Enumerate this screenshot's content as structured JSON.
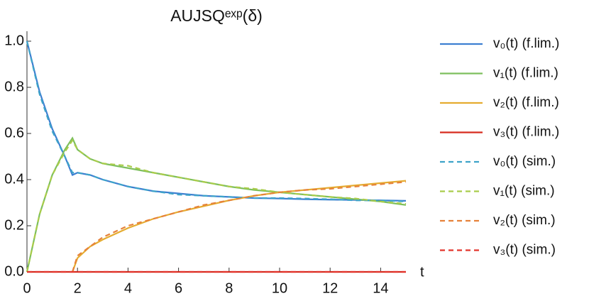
{
  "chart_data": {
    "type": "line",
    "title": "AUJSQᵉˣᵖ(δ)",
    "x_label": "t",
    "x": [
      0,
      0.5,
      1,
      1.5,
      1.8,
      2,
      2.5,
      3,
      4,
      5,
      6,
      7,
      8,
      9,
      10,
      11,
      12,
      13,
      14,
      15
    ],
    "xlim": [
      0,
      15
    ],
    "xticks": [
      0,
      2,
      4,
      6,
      8,
      10,
      12,
      14
    ],
    "ylim": [
      0,
      1
    ],
    "yticks": [
      {
        "value": 0,
        "label": "0.0"
      },
      0.2,
      0.4,
      0.6,
      0.8,
      {
        "value": 1,
        "label": "1.0"
      }
    ],
    "legend": "right",
    "series": [
      {
        "name": "v₀(t) (f.lim.)",
        "color": "#3d7fd1",
        "dash": false,
        "values": [
          1.0,
          0.78,
          0.62,
          0.5,
          0.42,
          0.43,
          0.42,
          0.4,
          0.37,
          0.35,
          0.34,
          0.33,
          0.325,
          0.32,
          0.318,
          0.315,
          0.313,
          0.312,
          0.31,
          0.308
        ]
      },
      {
        "name": "v₁(t) (f.lim.)",
        "color": "#7dbf5e",
        "dash": false,
        "values": [
          0,
          0.25,
          0.42,
          0.53,
          0.58,
          0.53,
          0.49,
          0.47,
          0.45,
          0.43,
          0.41,
          0.39,
          0.37,
          0.355,
          0.345,
          0.335,
          0.325,
          0.315,
          0.305,
          0.29
        ]
      },
      {
        "name": "v₂(t) (f.lim.)",
        "color": "#e5ac30",
        "dash": false,
        "values": [
          null,
          null,
          null,
          null,
          0,
          0.06,
          0.11,
          0.14,
          0.19,
          0.23,
          0.26,
          0.285,
          0.31,
          0.33,
          0.345,
          0.355,
          0.365,
          0.375,
          0.385,
          0.395
        ]
      },
      {
        "name": "v₃(t) (f.lim.)",
        "color": "#d62b1e",
        "dash": false,
        "values": [
          0,
          0,
          0,
          0,
          0,
          0,
          0,
          0,
          0,
          0,
          0,
          0,
          0,
          0,
          0,
          0,
          0,
          0,
          0,
          0
        ]
      },
      {
        "name": "v₀(t) (sim.)",
        "color": "#3ea3c9",
        "dash": true,
        "values": [
          1.0,
          0.77,
          0.61,
          0.5,
          0.43,
          0.43,
          0.42,
          0.4,
          0.37,
          0.35,
          0.335,
          0.33,
          0.325,
          0.32,
          0.32,
          0.318,
          0.315,
          0.31,
          0.31,
          0.305
        ]
      },
      {
        "name": "v₁(t) (sim.)",
        "color": "#a9cc4a",
        "dash": true,
        "values": [
          0,
          0.25,
          0.42,
          0.52,
          0.57,
          0.53,
          0.49,
          0.47,
          0.46,
          0.43,
          0.41,
          0.39,
          0.37,
          0.36,
          0.345,
          0.335,
          0.325,
          0.318,
          0.305,
          0.295
        ]
      },
      {
        "name": "v₂(t) (sim.)",
        "color": "#e6823a",
        "dash": true,
        "values": [
          null,
          null,
          null,
          null,
          0,
          0.07,
          0.11,
          0.15,
          0.2,
          0.23,
          0.26,
          0.29,
          0.31,
          0.33,
          0.345,
          0.355,
          0.36,
          0.37,
          0.38,
          0.39
        ]
      },
      {
        "name": "v₃(t) (sim.)",
        "color": "#e3342c",
        "dash": true,
        "values": [
          0,
          0,
          0,
          0,
          0,
          0,
          0,
          0,
          0,
          0,
          0,
          0,
          0,
          0,
          0,
          0,
          0,
          0,
          0,
          0
        ]
      }
    ]
  }
}
